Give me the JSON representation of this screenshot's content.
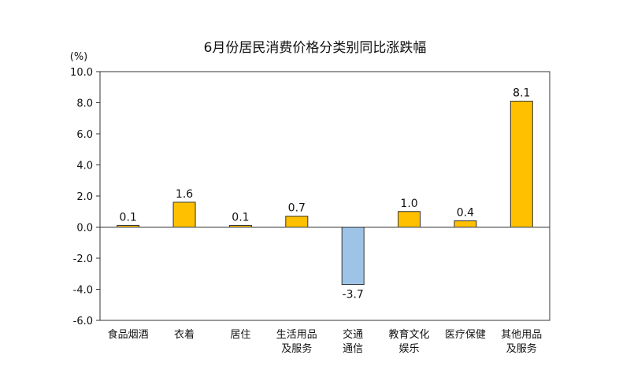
{
  "title": "6月份居民消费价格分类别同比涨跌幅",
  "unit_label": "(%)",
  "colors": {
    "positive": "#FFC000",
    "negative": "#9DC3E6",
    "bar_stroke": "#333333",
    "axis": "#333333"
  },
  "chart_data": {
    "type": "bar",
    "title": "6月份居民消费价格分类别同比涨跌幅",
    "ylabel": "(%)",
    "ylim": [
      -6.0,
      10.0
    ],
    "yticks": [
      "10.0",
      "8.0",
      "6.0",
      "4.0",
      "2.0",
      "0.0",
      "-2.0",
      "-4.0",
      "-6.0"
    ],
    "ytick_values": [
      10,
      8,
      6,
      4,
      2,
      0,
      -2,
      -4,
      -6
    ],
    "grid": false,
    "categories": [
      [
        "食品烟酒"
      ],
      [
        "衣着"
      ],
      [
        "居住"
      ],
      [
        "生活用品",
        "及服务"
      ],
      [
        "交通",
        "通信"
      ],
      [
        "教育文化",
        "娱乐"
      ],
      [
        "医疗保健"
      ],
      [
        "其他用品",
        "及服务"
      ]
    ],
    "values": [
      0.1,
      1.6,
      0.1,
      0.7,
      -3.7,
      1.0,
      0.4,
      8.1
    ],
    "value_labels": [
      "0.1",
      "1.6",
      "0.1",
      "0.7",
      "-3.7",
      "1.0",
      "0.4",
      "8.1"
    ]
  }
}
